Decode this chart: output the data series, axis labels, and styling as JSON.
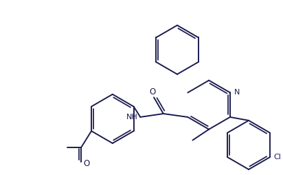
{
  "line_color": "#1a1a50",
  "bg_color": "#ffffff",
  "lw": 1.4,
  "figsize": [
    4.12,
    2.54
  ],
  "dpi": 100,
  "xlim": [
    0,
    8.24
  ],
  "ylim": [
    0,
    5.08
  ]
}
